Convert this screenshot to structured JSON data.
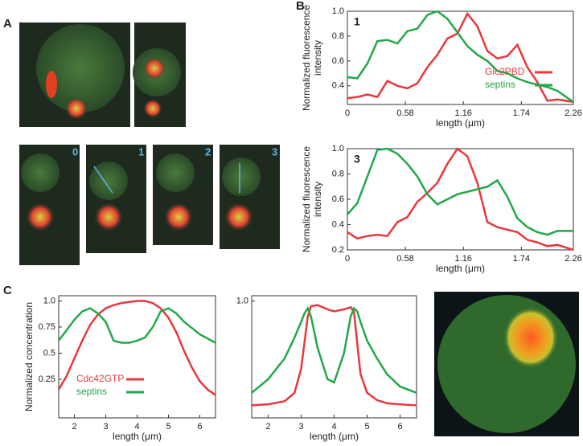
{
  "panels": [
    "A",
    "B",
    "C"
  ],
  "image_labels": [
    "0",
    "1",
    "2",
    "3"
  ],
  "chart_data": [
    {
      "type": "line",
      "title": "1",
      "xlabel": "length (μm)",
      "ylabel": [
        "Normalized fluorescence",
        "intensity"
      ],
      "x": [
        0,
        0.1,
        0.2,
        0.3,
        0.4,
        0.5,
        0.6,
        0.7,
        0.8,
        0.9,
        1.0,
        1.1,
        1.2,
        1.3,
        1.4,
        1.5,
        1.6,
        1.7,
        1.8,
        1.9,
        2.0,
        2.1,
        2.26
      ],
      "series": [
        {
          "name": "Gic2PBD",
          "color": "#e8383d",
          "values": [
            0.3,
            0.31,
            0.33,
            0.31,
            0.44,
            0.4,
            0.38,
            0.42,
            0.55,
            0.65,
            0.78,
            0.82,
            0.98,
            0.88,
            0.68,
            0.62,
            0.64,
            0.73,
            0.55,
            0.43,
            0.28,
            0.29,
            0.27
          ]
        },
        {
          "name": "septins",
          "color": "#22a84a",
          "values": [
            0.47,
            0.46,
            0.58,
            0.76,
            0.77,
            0.74,
            0.84,
            0.86,
            0.97,
            1.0,
            0.94,
            0.83,
            0.72,
            0.65,
            0.6,
            0.52,
            0.5,
            0.46,
            0.43,
            0.41,
            0.39,
            0.36,
            0.27
          ]
        }
      ],
      "xlim": [
        0,
        2.26
      ],
      "xticks": [
        0,
        0.58,
        1.16,
        1.74,
        2.26
      ],
      "ylim": [
        0.25,
        1.0
      ],
      "yticks": [
        0.4,
        0.6,
        0.8,
        {
          "value": 1.0,
          "label": "1.0"
        }
      ],
      "legend": "center-right"
    },
    {
      "type": "line",
      "title": "3",
      "xlabel": "length (μm)",
      "ylabel": [
        "Normalized fluorescence",
        "intensity"
      ],
      "x": [
        0,
        0.1,
        0.2,
        0.3,
        0.4,
        0.5,
        0.6,
        0.7,
        0.8,
        0.9,
        1.0,
        1.1,
        1.2,
        1.3,
        1.4,
        1.5,
        1.6,
        1.7,
        1.8,
        1.9,
        2.0,
        2.1,
        2.26
      ],
      "series": [
        {
          "color": "#e8383d",
          "values": [
            0.34,
            0.29,
            0.31,
            0.32,
            0.31,
            0.42,
            0.46,
            0.58,
            0.65,
            0.73,
            0.88,
            1.0,
            0.94,
            0.73,
            0.42,
            0.38,
            0.36,
            0.34,
            0.28,
            0.26,
            0.23,
            0.24,
            0.2
          ]
        },
        {
          "color": "#22a84a",
          "values": [
            0.48,
            0.57,
            0.78,
            0.99,
            1.0,
            0.96,
            0.88,
            0.78,
            0.64,
            0.56,
            0.6,
            0.64,
            0.66,
            0.68,
            0.7,
            0.75,
            0.62,
            0.45,
            0.38,
            0.34,
            0.32,
            0.35,
            0.35
          ]
        }
      ],
      "xlim": [
        0,
        2.26
      ],
      "xticks": [
        0,
        0.58,
        1.16,
        1.74,
        2.26
      ],
      "ylim": [
        0.2,
        1.0
      ],
      "yticks": [
        0.2,
        0.4,
        0.6,
        0.8,
        {
          "value": 1.0,
          "label": "1.0"
        }
      ]
    },
    {
      "type": "line",
      "xlabel": "length (μm)",
      "ylabel": [
        "Normalized concentration"
      ],
      "x": [
        1.5,
        1.75,
        2.0,
        2.25,
        2.5,
        2.75,
        3.0,
        3.25,
        3.5,
        3.75,
        4.0,
        4.25,
        4.5,
        4.75,
        5.0,
        5.25,
        5.5,
        5.75,
        6.0,
        6.25,
        6.5
      ],
      "series": [
        {
          "name": "Cdc42GTP",
          "color": "#e8383d",
          "values": [
            0.15,
            0.28,
            0.45,
            0.62,
            0.77,
            0.87,
            0.93,
            0.96,
            0.98,
            0.99,
            1.0,
            1.0,
            0.98,
            0.93,
            0.84,
            0.7,
            0.52,
            0.36,
            0.23,
            0.15,
            0.1
          ]
        },
        {
          "name": "septins",
          "color": "#22a84a",
          "values": [
            0.62,
            0.72,
            0.82,
            0.9,
            0.93,
            0.88,
            0.8,
            0.62,
            0.6,
            0.6,
            0.62,
            0.65,
            0.75,
            0.9,
            0.93,
            0.88,
            0.8,
            0.74,
            0.68,
            0.64,
            0.6
          ]
        }
      ],
      "xlim": [
        1.5,
        6.5
      ],
      "xticks": [
        2,
        3,
        4,
        5,
        6
      ],
      "ylim": [
        -0.12,
        1.05
      ],
      "yticks": [
        0.25,
        0.5,
        0.75,
        {
          "value": 1.0,
          "label": "1.0"
        }
      ],
      "legend": "lower-left"
    },
    {
      "type": "line",
      "xlabel": "length (μm)",
      "x": [
        1.5,
        2.0,
        2.5,
        2.8,
        3.0,
        3.1,
        3.2,
        3.3,
        3.5,
        3.8,
        4.0,
        4.3,
        4.5,
        4.6,
        4.7,
        4.8,
        5.0,
        5.3,
        5.6,
        6.0,
        6.5
      ],
      "series": [
        {
          "color": "#e8383d",
          "values": [
            0.0,
            0.01,
            0.04,
            0.12,
            0.35,
            0.6,
            0.85,
            0.95,
            0.96,
            0.92,
            0.9,
            0.92,
            0.94,
            0.9,
            0.6,
            0.3,
            0.12,
            0.05,
            0.02,
            0.01,
            0.0
          ]
        },
        {
          "color": "#22a84a",
          "values": [
            0.12,
            0.25,
            0.45,
            0.65,
            0.8,
            0.88,
            0.93,
            0.85,
            0.55,
            0.25,
            0.22,
            0.5,
            0.85,
            0.93,
            0.9,
            0.8,
            0.62,
            0.45,
            0.3,
            0.18,
            0.12
          ]
        }
      ],
      "xlim": [
        1.5,
        6.5
      ],
      "xticks": [
        2,
        3,
        4,
        5,
        6
      ],
      "ylim": [
        -0.12,
        1.05
      ],
      "yticks": [
        {
          "value": 1.0,
          "label": "1.0"
        }
      ]
    }
  ]
}
